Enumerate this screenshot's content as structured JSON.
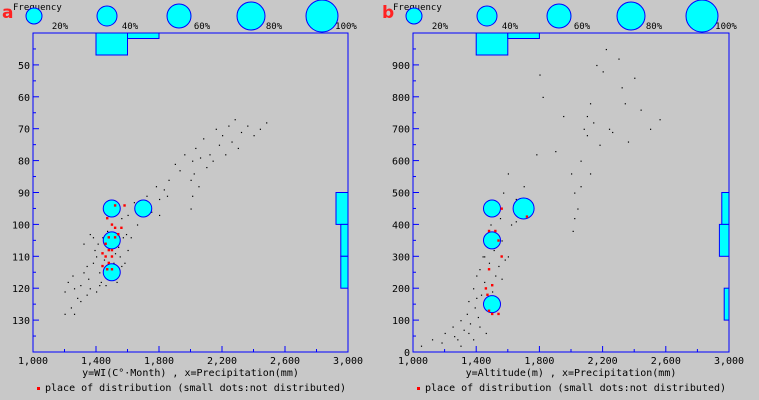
{
  "frequency_legend": {
    "label": "Frequency",
    "percents": [
      "20%",
      "40%",
      "60%",
      "80%",
      "100%"
    ],
    "values": [
      20,
      40,
      60,
      80,
      100
    ]
  },
  "colors": {
    "plot_bg": "#c8c8c8",
    "axis": "#0000ff",
    "marker": "#00ffff",
    "marker_stroke": "#0000ff",
    "red": "#ff0000",
    "black": "#000000"
  },
  "chart_data": [
    {
      "type": "scatter",
      "letter": "a",
      "caption": "y=WI(C°·Month) , x=Precipitation(mm)",
      "legend_text": "place of distribution (small dots:not distributed)",
      "xlim": [
        1000,
        3000
      ],
      "ylim": [
        140,
        40
      ],
      "x_ticks": [
        1000,
        1400,
        1800,
        2200,
        2600,
        3000
      ],
      "x_tick_labels": [
        "1,000",
        "1,400",
        "1,800",
        "2,200",
        "2,600",
        "3,000"
      ],
      "y_ticks": [
        50,
        60,
        70,
        80,
        90,
        100,
        110,
        120,
        130
      ],
      "y_tick_labels": [
        "50",
        "60",
        "70",
        "80",
        "90",
        "100",
        "110",
        "120",
        "130"
      ],
      "y_minor_ticks": [
        45,
        55,
        65,
        75,
        85,
        95,
        105,
        115,
        125,
        135
      ],
      "frequency_circles": [
        {
          "x": 1500,
          "y": 95,
          "freq": 25
        },
        {
          "x": 1700,
          "y": 95,
          "freq": 25
        },
        {
          "x": 1500,
          "y": 105,
          "freq": 25
        },
        {
          "x": 1500,
          "y": 115,
          "freq": 25
        }
      ],
      "top_histogram": [
        {
          "x0": 1400,
          "x1": 1600,
          "freq": 100
        },
        {
          "x0": 1600,
          "x1": 1800,
          "freq": 25
        }
      ],
      "right_histogram": [
        {
          "y0": 90,
          "y1": 100,
          "freq": 100
        },
        {
          "y0": 100,
          "y1": 110,
          "freq": 60
        },
        {
          "y0": 110,
          "y1": 120,
          "freq": 60
        }
      ],
      "red_points": [
        [
          1520,
          94
        ],
        [
          1580,
          94
        ],
        [
          1470,
          98
        ],
        [
          1500,
          100
        ],
        [
          1520,
          101
        ],
        [
          1560,
          101
        ],
        [
          1540,
          103
        ],
        [
          1480,
          104
        ],
        [
          1520,
          104
        ],
        [
          1460,
          106
        ],
        [
          1480,
          108
        ],
        [
          1500,
          108
        ],
        [
          1440,
          109
        ],
        [
          1460,
          110
        ],
        [
          1500,
          110
        ],
        [
          1480,
          112
        ],
        [
          1440,
          113
        ],
        [
          1470,
          114
        ],
        [
          1500,
          114
        ]
      ],
      "black_points": [
        [
          1200,
          128
        ],
        [
          1240,
          126
        ],
        [
          1200,
          121
        ],
        [
          1220,
          118
        ],
        [
          1250,
          116
        ],
        [
          1260,
          120
        ],
        [
          1280,
          123
        ],
        [
          1300,
          119
        ],
        [
          1320,
          115
        ],
        [
          1340,
          113
        ],
        [
          1350,
          117
        ],
        [
          1360,
          120
        ],
        [
          1380,
          112
        ],
        [
          1390,
          108
        ],
        [
          1400,
          110
        ],
        [
          1410,
          106
        ],
        [
          1420,
          115
        ],
        [
          1430,
          118
        ],
        [
          1440,
          104
        ],
        [
          1450,
          111
        ],
        [
          1460,
          116
        ],
        [
          1470,
          102
        ],
        [
          1480,
          117
        ],
        [
          1490,
          113
        ],
        [
          1500,
          106
        ],
        [
          1510,
          112
        ],
        [
          1520,
          109
        ],
        [
          1530,
          115
        ],
        [
          1540,
          107
        ],
        [
          1550,
          110
        ],
        [
          1560,
          98
        ],
        [
          1570,
          104
        ],
        [
          1580,
          112
        ],
        [
          1590,
          103
        ],
        [
          1600,
          97
        ],
        [
          1640,
          93
        ],
        [
          1660,
          100
        ],
        [
          1720,
          91
        ],
        [
          1750,
          96
        ],
        [
          1780,
          88
        ],
        [
          1800,
          92
        ],
        [
          1830,
          89
        ],
        [
          1860,
          86
        ],
        [
          1900,
          81
        ],
        [
          1930,
          83
        ],
        [
          1960,
          78
        ],
        [
          2000,
          86
        ],
        [
          2010,
          80
        ],
        [
          2020,
          84
        ],
        [
          2030,
          76
        ],
        [
          2050,
          88
        ],
        [
          2060,
          79
        ],
        [
          2080,
          73
        ],
        [
          2100,
          82
        ],
        [
          2120,
          78
        ],
        [
          2140,
          80
        ],
        [
          2160,
          70
        ],
        [
          2180,
          75
        ],
        [
          2200,
          72
        ],
        [
          2220,
          78
        ],
        [
          2240,
          69
        ],
        [
          2260,
          74
        ],
        [
          2280,
          67
        ],
        [
          2300,
          76
        ],
        [
          2320,
          71
        ],
        [
          2360,
          69
        ],
        [
          2400,
          72
        ],
        [
          2440,
          70
        ],
        [
          2480,
          68
        ],
        [
          1800,
          97
        ],
        [
          1850,
          91
        ],
        [
          2000,
          95
        ],
        [
          2010,
          91
        ],
        [
          1320,
          106
        ],
        [
          1360,
          103
        ],
        [
          1380,
          104
        ],
        [
          1300,
          124
        ],
        [
          1340,
          122
        ],
        [
          1260,
          128
        ],
        [
          1400,
          121
        ],
        [
          1420,
          119
        ],
        [
          1460,
          119
        ],
        [
          1530,
          118
        ],
        [
          1560,
          113
        ],
        [
          1600,
          108
        ],
        [
          1620,
          104
        ]
      ]
    },
    {
      "type": "scatter",
      "letter": "b",
      "caption": "y=Altitude(m) , x=Precipitation(mm)",
      "legend_text": "place of distribution (small dots:not distributed)",
      "xlim": [
        1000,
        3000
      ],
      "ylim": [
        0,
        1000
      ],
      "x_ticks": [
        1000,
        1400,
        1800,
        2200,
        2600,
        3000
      ],
      "x_tick_labels": [
        "1,000",
        "1,400",
        "1,800",
        "2,200",
        "2,600",
        "3,000"
      ],
      "y_ticks": [
        0,
        100,
        200,
        300,
        400,
        500,
        600,
        700,
        800,
        900
      ],
      "y_tick_labels": [
        "0",
        "100",
        "200",
        "300",
        "400",
        "500",
        "600",
        "700",
        "800",
        "900"
      ],
      "y_minor_ticks": [
        50,
        150,
        250,
        350,
        450,
        550,
        650,
        750,
        850,
        950
      ],
      "frequency_circles": [
        {
          "x": 1500,
          "y": 450,
          "freq": 25
        },
        {
          "x": 1700,
          "y": 450,
          "freq": 45
        },
        {
          "x": 1500,
          "y": 350,
          "freq": 25
        },
        {
          "x": 1500,
          "y": 150,
          "freq": 25
        }
      ],
      "top_histogram": [
        {
          "x0": 1400,
          "x1": 1600,
          "freq": 100
        },
        {
          "x0": 1600,
          "x1": 1800,
          "freq": 25
        }
      ],
      "right_histogram": [
        {
          "y0": 400,
          "y1": 500,
          "freq": 60
        },
        {
          "y0": 300,
          "y1": 400,
          "freq": 80
        },
        {
          "y0": 100,
          "y1": 200,
          "freq": 40
        }
      ],
      "red_points": [
        [
          1560,
          450
        ],
        [
          1720,
          425
        ],
        [
          1480,
          380
        ],
        [
          1520,
          380
        ],
        [
          1540,
          350
        ],
        [
          1560,
          300
        ],
        [
          1480,
          260
        ],
        [
          1500,
          210
        ],
        [
          1460,
          200
        ],
        [
          1480,
          130
        ],
        [
          1500,
          120
        ],
        [
          1540,
          120
        ],
        [
          1470,
          180
        ]
      ],
      "black_points": [
        [
          1050,
          20
        ],
        [
          1120,
          40
        ],
        [
          1180,
          30
        ],
        [
          1200,
          60
        ],
        [
          1250,
          80
        ],
        [
          1260,
          50
        ],
        [
          1300,
          100
        ],
        [
          1320,
          70
        ],
        [
          1340,
          120
        ],
        [
          1350,
          160
        ],
        [
          1360,
          90
        ],
        [
          1380,
          200
        ],
        [
          1390,
          140
        ],
        [
          1400,
          240
        ],
        [
          1410,
          110
        ],
        [
          1420,
          260
        ],
        [
          1430,
          180
        ],
        [
          1440,
          300
        ],
        [
          1450,
          220
        ],
        [
          1460,
          340
        ],
        [
          1470,
          150
        ],
        [
          1480,
          280
        ],
        [
          1490,
          400
        ],
        [
          1500,
          190
        ],
        [
          1510,
          320
        ],
        [
          1520,
          240
        ],
        [
          1530,
          360
        ],
        [
          1540,
          270
        ],
        [
          1550,
          420
        ],
        [
          1560,
          230
        ],
        [
          1570,
          500
        ],
        [
          1580,
          290
        ],
        [
          1600,
          560
        ],
        [
          1650,
          410
        ],
        [
          1700,
          520
        ],
        [
          1780,
          620
        ],
        [
          1800,
          870
        ],
        [
          1820,
          800
        ],
        [
          1900,
          630
        ],
        [
          1950,
          740
        ],
        [
          2000,
          560
        ],
        [
          2010,
          380
        ],
        [
          2020,
          420
        ],
        [
          2040,
          450
        ],
        [
          2060,
          600
        ],
        [
          2080,
          700
        ],
        [
          2100,
          740
        ],
        [
          2120,
          780
        ],
        [
          2140,
          720
        ],
        [
          2160,
          900
        ],
        [
          2180,
          650
        ],
        [
          2200,
          880
        ],
        [
          2220,
          950
        ],
        [
          2240,
          700
        ],
        [
          2260,
          690
        ],
        [
          2300,
          920
        ],
        [
          2320,
          830
        ],
        [
          2340,
          780
        ],
        [
          2360,
          660
        ],
        [
          2400,
          860
        ],
        [
          2440,
          760
        ],
        [
          2500,
          700
        ],
        [
          2560,
          730
        ],
        [
          1280,
          40
        ],
        [
          1300,
          20
        ],
        [
          1350,
          60
        ],
        [
          1380,
          40
        ],
        [
          1420,
          80
        ],
        [
          1460,
          60
        ],
        [
          1400,
          170
        ],
        [
          1450,
          300
        ],
        [
          1560,
          350
        ],
        [
          1600,
          300
        ],
        [
          1620,
          400
        ],
        [
          1650,
          480
        ],
        [
          1680,
          470
        ],
        [
          2020,
          500
        ],
        [
          2060,
          520
        ],
        [
          2100,
          680
        ],
        [
          2120,
          560
        ]
      ]
    }
  ]
}
